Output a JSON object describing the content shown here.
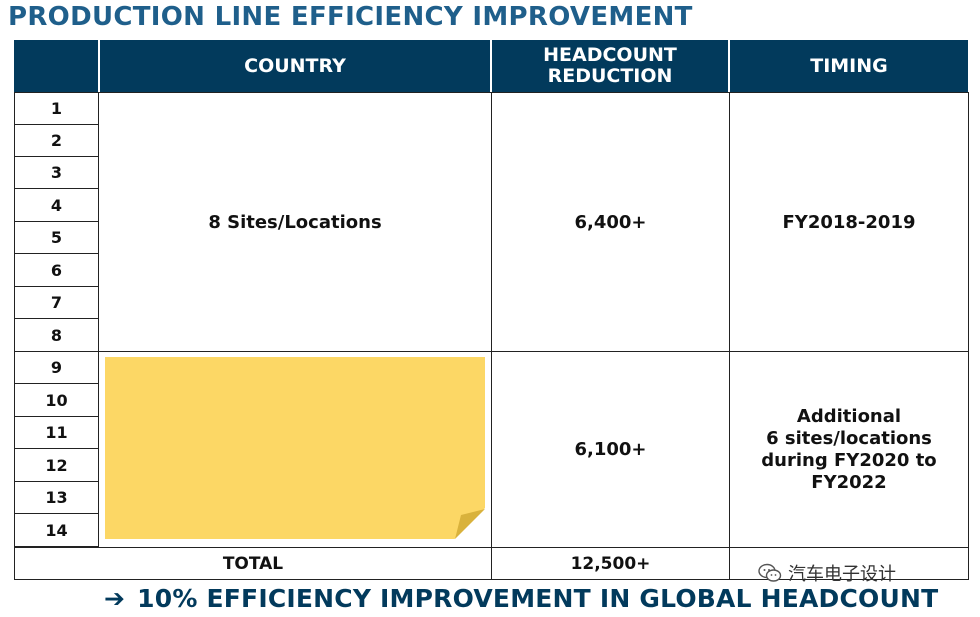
{
  "title": "PRODUCTION LINE EFFICIENCY IMPROVEMENT",
  "table": {
    "headers": {
      "country": "COUNTRY",
      "headcount_line1": "HEADCOUNT",
      "headcount_line2": "REDUCTION",
      "timing": "TIMING"
    },
    "row_numbers": [
      "1",
      "2",
      "3",
      "4",
      "5",
      "6",
      "7",
      "8",
      "9",
      "10",
      "11",
      "12",
      "13",
      "14"
    ],
    "group1": {
      "country": "8 Sites/Locations",
      "headcount": "6,400+",
      "timing": "FY2018-2019"
    },
    "group2": {
      "country": "",
      "headcount": "6,100+",
      "timing_lines": [
        "Additional",
        "6 sites/locations",
        "during FY2020 to",
        "FY2022"
      ]
    },
    "total": {
      "label": "TOTAL",
      "headcount": "12,500+",
      "timing": ""
    }
  },
  "footer": {
    "arrow": "➔",
    "text": "10% EFFICIENCY IMPROVEMENT IN GLOBAL HEADCOUNT"
  },
  "watermark": {
    "icon": "wechat-icon",
    "text": "汽车电子设计"
  },
  "colors": {
    "header_bg": "#023a5c",
    "title": "#1f5f8b",
    "sticky_note": "#fcd765"
  }
}
